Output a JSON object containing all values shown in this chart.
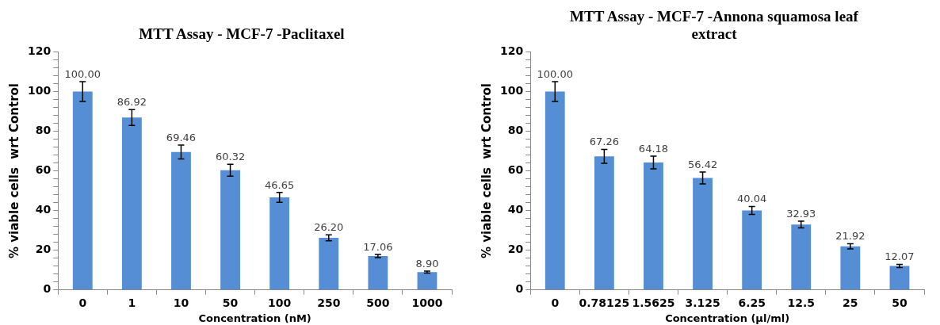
{
  "chart_data": [
    {
      "type": "bar",
      "title": "MTT Assay - MCF-7 -Paclitaxel",
      "xlabel": "Concentration (nM)",
      "ylabel": "% viable cells  wrt Control",
      "categories": [
        "0",
        "1",
        "10",
        "50",
        "100",
        "250",
        "500",
        "1000"
      ],
      "values": [
        100.0,
        86.92,
        69.46,
        60.32,
        46.65,
        26.2,
        17.06,
        8.9
      ],
      "errors": [
        5,
        4,
        3.5,
        3,
        2.5,
        1.5,
        0.8,
        0.5
      ],
      "value_labels": [
        "100.00",
        "86.92",
        "69.46",
        "60.32",
        "46.65",
        "26.20",
        "17.06",
        "8.90"
      ],
      "color": "#558ed5",
      "grid": false,
      "legend": false,
      "ylim": [
        0,
        120
      ],
      "yticks": [
        0,
        {
          "value": 4,
          "label": null
        },
        {
          "value": 8,
          "label": null
        },
        {
          "value": 12,
          "label": null
        },
        {
          "value": 16,
          "label": null
        },
        20,
        {
          "value": 24,
          "label": null
        },
        {
          "value": 28,
          "label": null
        },
        {
          "value": 32,
          "label": null
        },
        {
          "value": 36,
          "label": null
        },
        40,
        {
          "value": 44,
          "label": null
        },
        {
          "value": 48,
          "label": null
        },
        {
          "value": 52,
          "label": null
        },
        {
          "value": 56,
          "label": null
        },
        60,
        {
          "value": 64,
          "label": null
        },
        {
          "value": 68,
          "label": null
        },
        {
          "value": 72,
          "label": null
        },
        {
          "value": 76,
          "label": null
        },
        80,
        {
          "value": 84,
          "label": null
        },
        {
          "value": 88,
          "label": null
        },
        {
          "value": 92,
          "label": null
        },
        {
          "value": 96,
          "label": null
        },
        100,
        {
          "value": 104,
          "label": null
        },
        {
          "value": 108,
          "label": null
        },
        {
          "value": 112,
          "label": null
        },
        {
          "value": 116,
          "label": null
        },
        120
      ]
    },
    {
      "type": "bar",
      "title": "MTT Assay - MCF-7 -Annona squamosa leaf extract",
      "xlabel": "Concentration (µl/ml)",
      "ylabel": "% viable cells  wrt Control",
      "categories": [
        "0",
        "0.78125",
        "1.5625",
        "3.125",
        "6.25",
        "12.5",
        "25",
        "50"
      ],
      "values": [
        100.0,
        67.26,
        64.18,
        56.42,
        40.04,
        32.93,
        21.92,
        12.07
      ],
      "errors": [
        5,
        3.5,
        3.2,
        3,
        2,
        1.7,
        1.3,
        0.8
      ],
      "value_labels": [
        "100.00",
        "67.26",
        "64.18",
        "56.42",
        "40.04",
        "32.93",
        "21.92",
        "12.07"
      ],
      "color": "#558ed5",
      "grid": false,
      "legend": false,
      "ylim": [
        0,
        120
      ],
      "yticks": [
        0,
        {
          "value": 4,
          "label": null
        },
        {
          "value": 8,
          "label": null
        },
        {
          "value": 12,
          "label": null
        },
        {
          "value": 16,
          "label": null
        },
        20,
        {
          "value": 24,
          "label": null
        },
        {
          "value": 28,
          "label": null
        },
        {
          "value": 32,
          "label": null
        },
        {
          "value": 36,
          "label": null
        },
        40,
        {
          "value": 44,
          "label": null
        },
        {
          "value": 48,
          "label": null
        },
        {
          "value": 52,
          "label": null
        },
        {
          "value": 56,
          "label": null
        },
        60,
        {
          "value": 64,
          "label": null
        },
        {
          "value": 68,
          "label": null
        },
        {
          "value": 72,
          "label": null
        },
        {
          "value": 76,
          "label": null
        },
        80,
        {
          "value": 84,
          "label": null
        },
        {
          "value": 88,
          "label": null
        },
        {
          "value": 92,
          "label": null
        },
        {
          "value": 96,
          "label": null
        },
        100,
        {
          "value": 104,
          "label": null
        },
        {
          "value": 108,
          "label": null
        },
        {
          "value": 112,
          "label": null
        },
        {
          "value": 116,
          "label": null
        },
        120
      ]
    }
  ]
}
